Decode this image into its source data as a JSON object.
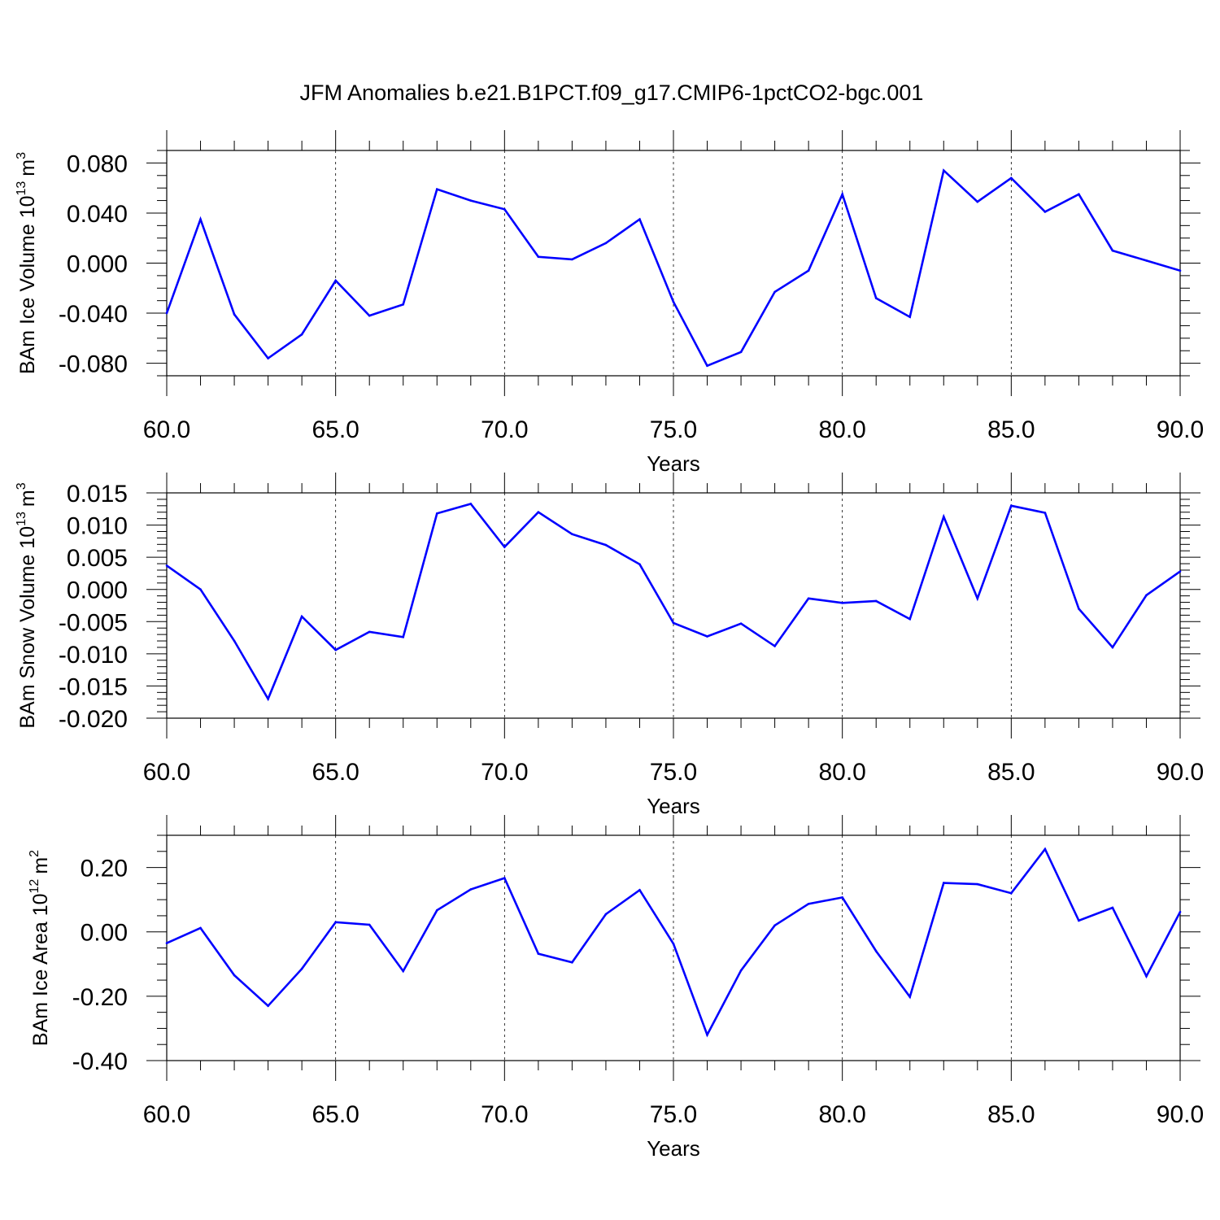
{
  "title": "JFM Anomalies b.e21.B1PCT.f09_g17.CMIP6-1pctCO2-bgc.001",
  "chart_data": [
    {
      "type": "line",
      "xlabel": "Years",
      "ylabel": {
        "main": "BAm Ice Volume 10",
        "exp": "13",
        "unit": "m",
        "unit_exp": "3"
      },
      "xlim": [
        60,
        90
      ],
      "ylim": [
        -0.09,
        0.09
      ],
      "xticks": [
        60,
        65,
        70,
        75,
        80,
        85,
        90
      ],
      "xtick_labels": [
        "60.0",
        "65.0",
        "70.0",
        "75.0",
        "80.0",
        "85.0",
        "90.0"
      ],
      "yticks": [
        -0.08,
        -0.04,
        0.0,
        0.04,
        0.08
      ],
      "ytick_labels": [
        "-0.080",
        "-0.040",
        "0.000",
        "0.040",
        "0.080"
      ],
      "yminor_step": 0.01,
      "grid": "vertical-dashed",
      "line_color": "#0000ff",
      "x": [
        60,
        61,
        62,
        63,
        64,
        65,
        66,
        67,
        68,
        69,
        70,
        71,
        72,
        73,
        74,
        75,
        76,
        77,
        78,
        79,
        80,
        81,
        82,
        83,
        84,
        85,
        86,
        87,
        88,
        89,
        90
      ],
      "values": [
        -0.04,
        0.035,
        -0.041,
        -0.076,
        -0.057,
        -0.014,
        -0.042,
        -0.033,
        0.059,
        0.05,
        0.043,
        0.005,
        0.003,
        0.016,
        0.035,
        -0.031,
        -0.082,
        -0.071,
        -0.023,
        -0.006,
        0.055,
        -0.028,
        -0.043,
        0.074,
        0.049,
        0.068,
        0.041,
        0.055,
        0.01,
        0.002,
        -0.006
      ]
    },
    {
      "type": "line",
      "xlabel": "Years",
      "ylabel": {
        "main": "BAm Snow Volume 10",
        "exp": "13",
        "unit": "m",
        "unit_exp": "3"
      },
      "xlim": [
        60,
        90
      ],
      "ylim": [
        -0.02,
        0.015
      ],
      "xticks": [
        60,
        65,
        70,
        75,
        80,
        85,
        90
      ],
      "xtick_labels": [
        "60.0",
        "65.0",
        "70.0",
        "75.0",
        "80.0",
        "85.0",
        "90.0"
      ],
      "yticks": [
        -0.02,
        -0.015,
        -0.01,
        -0.005,
        0.0,
        0.005,
        0.01,
        0.015
      ],
      "ytick_labels": [
        "-0.020",
        "-0.015",
        "-0.010",
        "-0.005",
        "0.000",
        "0.005",
        "0.010",
        "0.015"
      ],
      "yminor_step": 0.001,
      "grid": "vertical-dashed",
      "line_color": "#0000ff",
      "x": [
        60,
        61,
        62,
        63,
        64,
        65,
        66,
        67,
        68,
        69,
        70,
        71,
        72,
        73,
        74,
        75,
        76,
        77,
        78,
        79,
        80,
        81,
        82,
        83,
        84,
        85,
        86,
        87,
        88,
        89,
        90
      ],
      "values": [
        0.0037,
        0.0,
        -0.008,
        -0.017,
        -0.0042,
        -0.0094,
        -0.0066,
        -0.0074,
        0.0118,
        0.0133,
        0.0066,
        0.012,
        0.0086,
        0.0069,
        0.0039,
        -0.0052,
        -0.0073,
        -0.0053,
        -0.0088,
        -0.0014,
        -0.0021,
        -0.0018,
        -0.0046,
        0.0113,
        -0.0014,
        0.013,
        0.0119,
        -0.003,
        -0.009,
        -0.0009,
        0.0028
      ]
    },
    {
      "type": "line",
      "xlabel": "Years",
      "ylabel": {
        "main": "BAm Ice Area 10",
        "exp": "12",
        "unit": "m",
        "unit_exp": "2"
      },
      "xlim": [
        60,
        90
      ],
      "ylim": [
        -0.4,
        0.3
      ],
      "xticks": [
        60,
        65,
        70,
        75,
        80,
        85,
        90
      ],
      "xtick_labels": [
        "60.0",
        "65.0",
        "70.0",
        "75.0",
        "80.0",
        "85.0",
        "90.0"
      ],
      "yticks": [
        -0.4,
        -0.2,
        0.0,
        0.2
      ],
      "ytick_labels": [
        "-0.40",
        "-0.20",
        "0.00",
        "0.20"
      ],
      "yminor_step": 0.05,
      "grid": "vertical-dashed",
      "line_color": "#0000ff",
      "x": [
        60,
        61,
        62,
        63,
        64,
        65,
        66,
        67,
        68,
        69,
        70,
        71,
        72,
        73,
        74,
        75,
        76,
        77,
        78,
        79,
        80,
        81,
        82,
        83,
        84,
        85,
        86,
        87,
        88,
        89,
        90
      ],
      "values": [
        -0.035,
        0.012,
        -0.135,
        -0.23,
        -0.115,
        0.03,
        0.022,
        -0.122,
        0.067,
        0.132,
        0.167,
        -0.068,
        -0.095,
        0.055,
        0.13,
        -0.037,
        -0.32,
        -0.12,
        0.02,
        0.087,
        0.107,
        -0.06,
        -0.202,
        0.152,
        0.148,
        0.12,
        0.257,
        0.035,
        0.075,
        -0.138,
        0.062
      ]
    }
  ]
}
